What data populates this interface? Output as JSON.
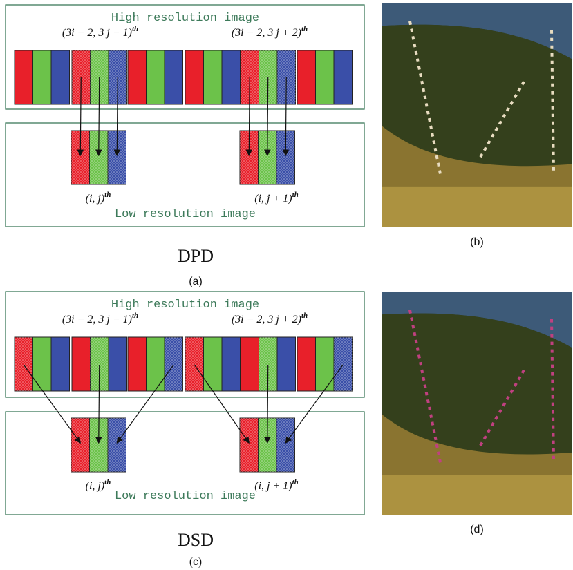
{
  "panels": [
    {
      "high_title": "High resolution image",
      "labels": [
        {
          "text": "(3i − 2, 3 j − 1)",
          "sup": "th"
        },
        {
          "text": "(3i − 2, 3 j + 2)",
          "sup": "th"
        },
        {
          "text": "(i, j)",
          "sup": "th"
        },
        {
          "text": "(i, j + 1)",
          "sup": "th"
        }
      ],
      "low_title": "Low resolution image",
      "name": "DPD",
      "caption": "(a)"
    },
    {
      "high_title": "High resolution image",
      "labels": [
        {
          "text": "(3i − 2, 3 j − 1)",
          "sup": "th"
        },
        {
          "text": "(3i − 2, 3 j + 2)",
          "sup": "th"
        },
        {
          "text": "(i, j)",
          "sup": "th"
        },
        {
          "text": "(i, j + 1)",
          "sup": "th"
        }
      ],
      "low_title": "Low resolution image",
      "name": "DSD",
      "caption": "(c)"
    }
  ],
  "photos": [
    {
      "caption": "(b)"
    },
    {
      "caption": "(d)"
    }
  ]
}
